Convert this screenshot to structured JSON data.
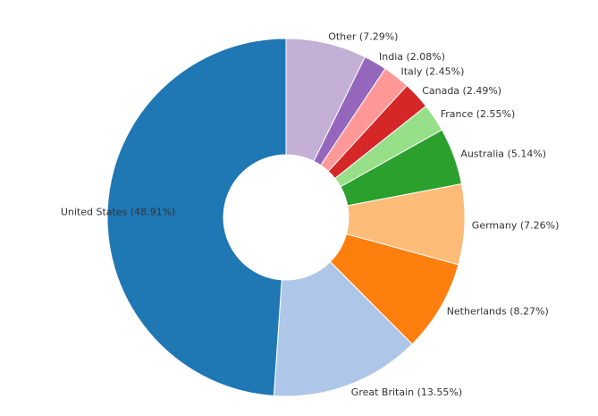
{
  "chart_data": {
    "type": "pie",
    "donut": true,
    "title": "",
    "start_angle_deg": 0,
    "direction": "clockwise",
    "slices": [
      {
        "label": "Other (7.29%)",
        "value": 7.29,
        "color": "#c5b0d5"
      },
      {
        "label": "India (2.08%)",
        "value": 2.08,
        "color": "#9467bd"
      },
      {
        "label": "Italy (2.45%)",
        "value": 2.45,
        "color": "#ff9896"
      },
      {
        "label": "Canada (2.49%)",
        "value": 2.49,
        "color": "#d62728"
      },
      {
        "label": "France (2.55%)",
        "value": 2.55,
        "color": "#98df8a"
      },
      {
        "label": "Australia (5.14%)",
        "value": 5.14,
        "color": "#2ca02c"
      },
      {
        "label": "Germany (7.26%)",
        "value": 7.26,
        "color": "#ffbb78"
      },
      {
        "label": "Netherlands (8.27%)",
        "value": 8.27,
        "color": "#ff7f0e"
      },
      {
        "label": "Great Britain (13.55%)",
        "value": 13.55,
        "color": "#aec7e8"
      },
      {
        "label": "United States (48.91%)",
        "value": 48.91,
        "color": "#1f77b4"
      }
    ]
  }
}
